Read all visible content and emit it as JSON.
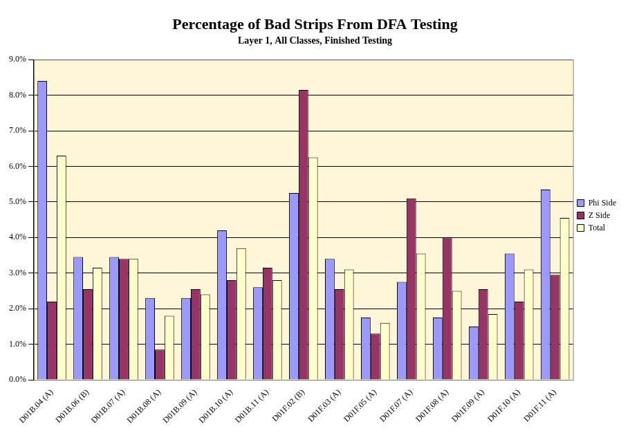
{
  "chart_data": {
    "type": "bar",
    "title": "Percentage of Bad Strips From DFA Testing",
    "subtitle": "Layer 1, All Classes, Finished Testing",
    "categories": [
      "D01B.04 (A)",
      "D01B.06 (B)",
      "D01B.07 (A)",
      "D01B.08 (A)",
      "D01B.09 (A)",
      "D01B.10 (A)",
      "D01B.11 (A)",
      "D01F.02 (B)",
      "D01F.03 (A)",
      "D01F.05 (A)",
      "D01F.07 (A)",
      "D01F.08 (A)",
      "D01F.09 (A)",
      "D01F.10 (A)",
      "D01F.11 (A)"
    ],
    "series": [
      {
        "name": "Phi Side",
        "color": "#9999ff",
        "values": [
          8.4,
          3.45,
          3.45,
          2.3,
          2.3,
          4.2,
          2.6,
          5.25,
          3.4,
          1.75,
          2.75,
          1.75,
          1.5,
          3.55,
          5.35
        ]
      },
      {
        "name": "Z Side",
        "color": "#993366",
        "values": [
          2.2,
          2.55,
          3.4,
          0.85,
          2.55,
          2.8,
          3.15,
          8.15,
          2.55,
          1.3,
          5.1,
          4.0,
          2.55,
          2.2,
          2.95
        ]
      },
      {
        "name": "Total",
        "color": "#ffffcc",
        "values": [
          6.3,
          3.15,
          3.4,
          1.8,
          2.4,
          3.7,
          2.8,
          6.25,
          3.1,
          1.6,
          3.55,
          2.5,
          1.85,
          3.1,
          4.55
        ]
      }
    ],
    "ylim": [
      0,
      9
    ],
    "yticks": [
      {
        "value": 0,
        "label": "0.0%"
      },
      {
        "value": 1,
        "label": "1.0%"
      },
      {
        "value": 2,
        "label": "2.0%"
      },
      {
        "value": 3,
        "label": "3.0%"
      },
      {
        "value": 4,
        "label": "4.0%"
      },
      {
        "value": 5,
        "label": "5.0%"
      },
      {
        "value": 6,
        "label": "6.0%"
      },
      {
        "value": 7,
        "label": "7.0%"
      },
      {
        "value": 8,
        "label": "8.0%"
      },
      {
        "value": 9,
        "label": "9.0%"
      }
    ],
    "grid": true,
    "legend": "right"
  }
}
